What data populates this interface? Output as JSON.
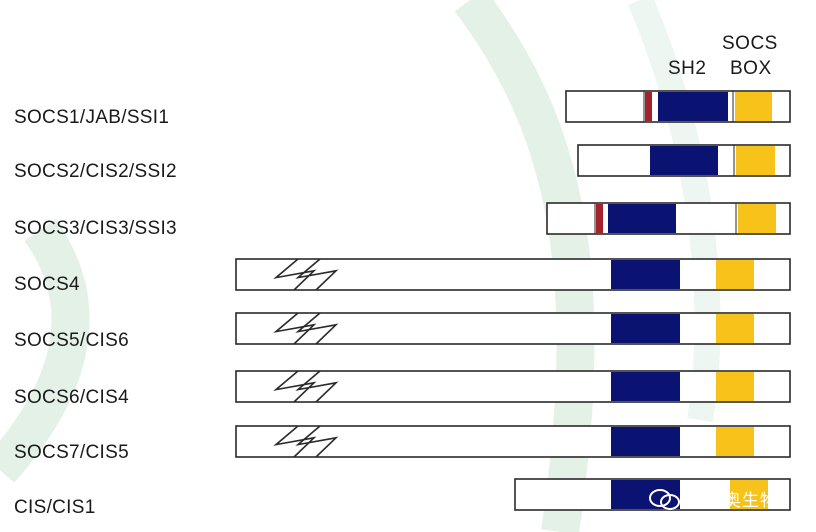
{
  "header": {
    "sh2_label": "SH2",
    "socs_box_line1": "SOCS",
    "socs_box_line2": "BOX"
  },
  "proteins": [
    {
      "name": "SOCS1/JAB/SSI1",
      "truncated": false,
      "kir": true
    },
    {
      "name": "SOCS2/CIS2/SSI2",
      "truncated": false,
      "kir": false
    },
    {
      "name": "SOCS3/CIS3/SSI3",
      "truncated": false,
      "kir": true
    },
    {
      "name": "SOCS4",
      "truncated": true,
      "kir": false
    },
    {
      "name": "SOCS5/CIS6",
      "truncated": true,
      "kir": false
    },
    {
      "name": "SOCS6/CIS4",
      "truncated": true,
      "kir": false
    },
    {
      "name": "SOCS7/CIS5",
      "truncated": true,
      "kir": false
    },
    {
      "name": "CIS/CIS1",
      "truncated": false,
      "kir": false
    }
  ],
  "colors": {
    "sh2": "#0a1272",
    "socs_box": "#f7c21a",
    "kir": "#a3222b",
    "outline": "#2a2a2a",
    "watermark": "#e6f2ea"
  },
  "watermark_text": "基迪奥生物"
}
